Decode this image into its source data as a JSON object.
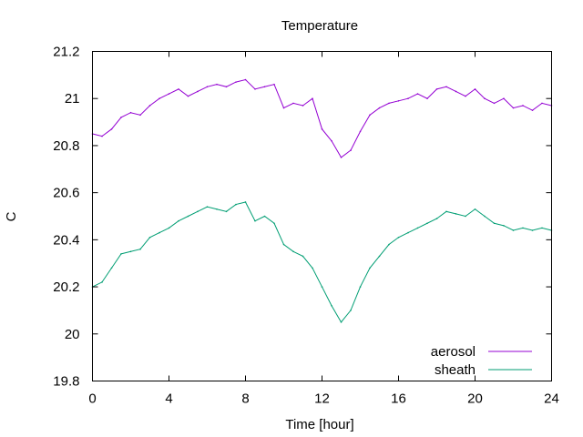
{
  "chart_data": {
    "type": "line",
    "title": "Temperature",
    "xlabel": "Time [hour]",
    "ylabel": "C",
    "xlim": [
      0,
      24
    ],
    "ylim": [
      19.8,
      21.2
    ],
    "xticks": [
      0,
      4,
      8,
      12,
      16,
      20,
      24
    ],
    "yticks": [
      19.8,
      20,
      20.2,
      20.4,
      20.6,
      20.8,
      21,
      21.2
    ],
    "grid": false,
    "legend_position": "bottom-right",
    "series": [
      {
        "name": "aerosol",
        "color": "#9400d3",
        "x": [
          0,
          0.5,
          1,
          1.5,
          2,
          2.5,
          3,
          3.5,
          4,
          4.5,
          5,
          5.5,
          6,
          6.5,
          7,
          7.5,
          8,
          8.5,
          9,
          9.5,
          10,
          10.5,
          11,
          11.5,
          12,
          12.5,
          13,
          13.5,
          14,
          14.5,
          15,
          15.5,
          16,
          16.5,
          17,
          17.5,
          18,
          18.5,
          19,
          19.5,
          20,
          20.5,
          21,
          21.5,
          22,
          22.5,
          23,
          23.5,
          24
        ],
        "y": [
          20.85,
          20.84,
          20.87,
          20.92,
          20.94,
          20.93,
          20.97,
          21.0,
          21.02,
          21.04,
          21.01,
          21.03,
          21.05,
          21.06,
          21.05,
          21.07,
          21.08,
          21.04,
          21.05,
          21.06,
          20.96,
          20.98,
          20.97,
          21.0,
          20.87,
          20.82,
          20.75,
          20.78,
          20.86,
          20.93,
          20.96,
          20.98,
          20.99,
          21.0,
          21.02,
          21.0,
          21.04,
          21.05,
          21.03,
          21.01,
          21.04,
          21.0,
          20.98,
          21.0,
          20.96,
          20.97,
          20.95,
          20.98,
          20.97
        ]
      },
      {
        "name": "sheath",
        "color": "#009e73",
        "x": [
          0,
          0.5,
          1,
          1.5,
          2,
          2.5,
          3,
          3.5,
          4,
          4.5,
          5,
          5.5,
          6,
          6.5,
          7,
          7.5,
          8,
          8.5,
          9,
          9.5,
          10,
          10.5,
          11,
          11.5,
          12,
          12.5,
          13,
          13.5,
          14,
          14.5,
          15,
          15.5,
          16,
          16.5,
          17,
          17.5,
          18,
          18.5,
          19,
          19.5,
          20,
          20.5,
          21,
          21.5,
          22,
          22.5,
          23,
          23.5,
          24
        ],
        "y": [
          20.2,
          20.22,
          20.28,
          20.34,
          20.35,
          20.36,
          20.41,
          20.43,
          20.45,
          20.48,
          20.5,
          20.52,
          20.54,
          20.53,
          20.52,
          20.55,
          20.56,
          20.48,
          20.5,
          20.47,
          20.38,
          20.35,
          20.33,
          20.28,
          20.2,
          20.12,
          20.05,
          20.1,
          20.2,
          20.28,
          20.33,
          20.38,
          20.41,
          20.43,
          20.45,
          20.47,
          20.49,
          20.52,
          20.51,
          20.5,
          20.53,
          20.5,
          20.47,
          20.46,
          20.44,
          20.45,
          20.44,
          20.45,
          20.44
        ]
      }
    ]
  }
}
